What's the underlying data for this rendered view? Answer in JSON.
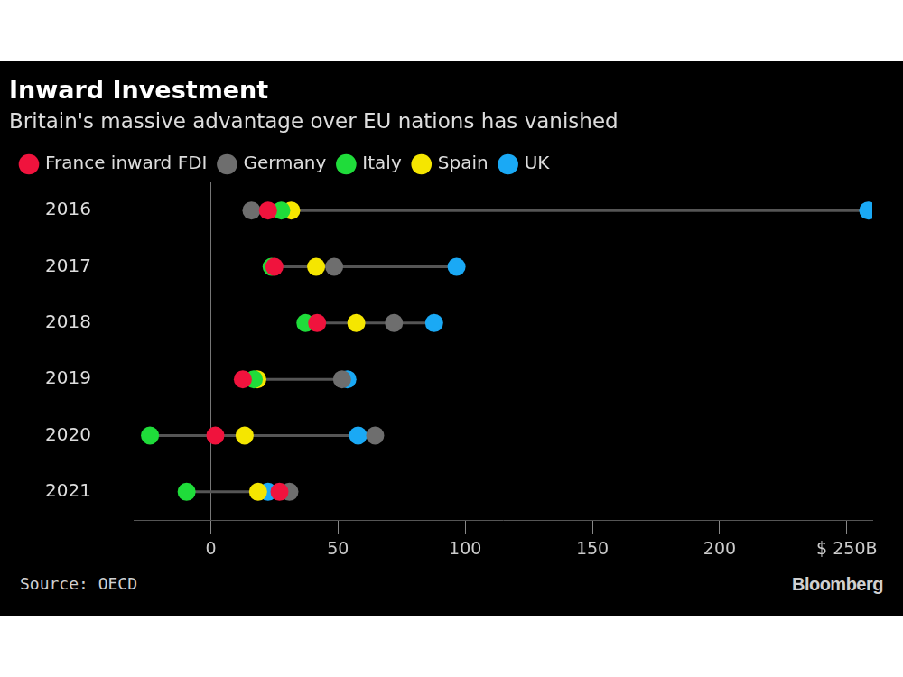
{
  "chart_data": {
    "type": "dot",
    "title": "Inward Investment",
    "subtitle": "Britain's massive advantage over EU nations has vanished",
    "orientation": "horizontal",
    "categories": [
      "2016",
      "2017",
      "2018",
      "2019",
      "2020",
      "2021"
    ],
    "series": [
      {
        "name": "France inward FDI",
        "color": "#f0133d",
        "values": [
          22.5,
          25,
          41.8,
          12.6,
          1.8,
          27
        ]
      },
      {
        "name": "Germany",
        "color": "#6e6e6e",
        "values": [
          16,
          48.5,
          72,
          51.6,
          64.6,
          30.9
        ]
      },
      {
        "name": "Italy",
        "color": "#1fdc3a",
        "values": [
          27.7,
          23.9,
          37.2,
          16.9,
          -23.9,
          -9.5
        ]
      },
      {
        "name": "Spain",
        "color": "#f5e600",
        "values": [
          31.6,
          41.4,
          57.2,
          18.3,
          13.3,
          18.6
        ]
      },
      {
        "name": "UK",
        "color": "#1aa9f5",
        "values": [
          258.4,
          96.6,
          87.8,
          53.7,
          57.9,
          22.5
        ]
      }
    ],
    "xlim": [
      -30,
      260
    ],
    "xticks": [
      0,
      50,
      100,
      150,
      200,
      {
        "value": 250,
        "label": "$ 250B"
      }
    ],
    "grid": false,
    "legend": "top left",
    "source": "Source: OECD",
    "credit": "Bloomberg"
  }
}
